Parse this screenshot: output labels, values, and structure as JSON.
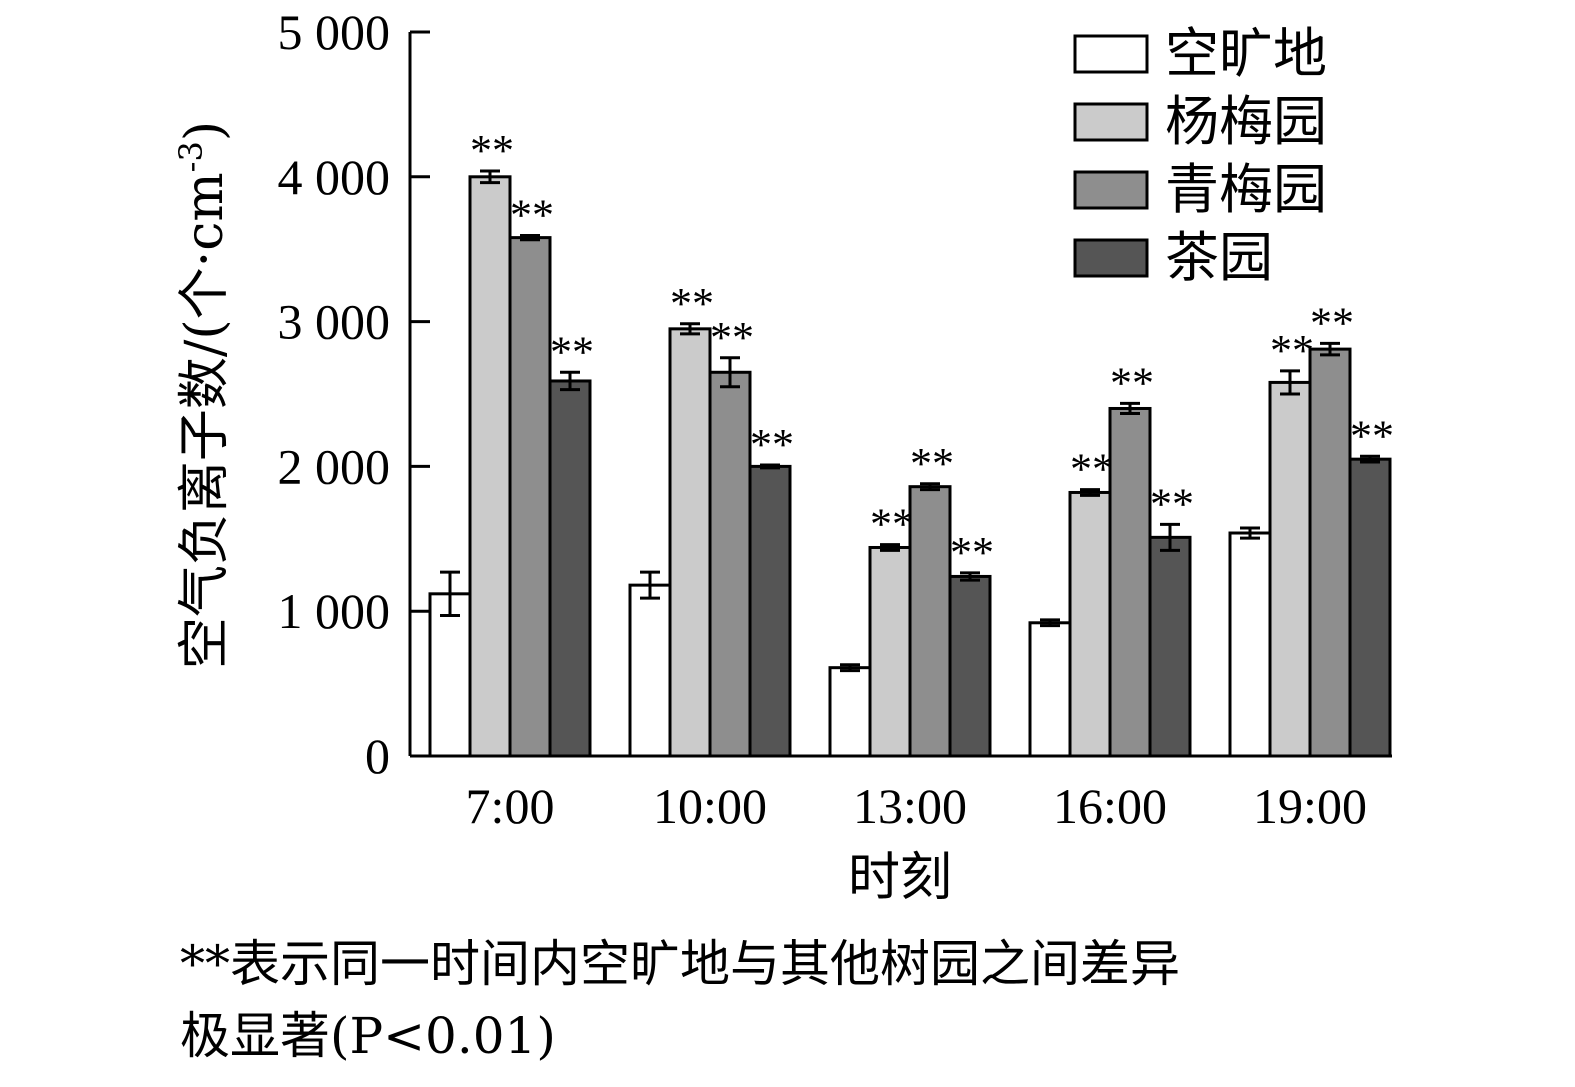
{
  "chart_data": {
    "type": "bar",
    "ylabel_main": "空气负离子数/(个·cm",
    "ylabel_sup": "-3",
    "ylabel_end": ")",
    "xlabel": "时刻",
    "ylim": [
      0,
      5000
    ],
    "yticks": [
      "0",
      "1 000",
      "2 000",
      "3 000",
      "4 000",
      "5 000"
    ],
    "ytick_values": [
      0,
      1000,
      2000,
      3000,
      4000,
      5000
    ],
    "categories": [
      "7:00",
      "10:00",
      "13:00",
      "16:00",
      "19:00"
    ],
    "series": [
      {
        "name": "空旷地",
        "color": "#ffffff",
        "values": [
          1120,
          1180,
          610,
          920,
          1540
        ],
        "errors": [
          150,
          90,
          20,
          20,
          35
        ],
        "sig": [
          false,
          false,
          false,
          false,
          false
        ]
      },
      {
        "name": "杨梅园",
        "color": "#cbcbcb",
        "values": [
          4000,
          2950,
          1440,
          1820,
          2580
        ],
        "errors": [
          40,
          35,
          20,
          20,
          80
        ],
        "sig": [
          true,
          true,
          true,
          true,
          true
        ]
      },
      {
        "name": "青梅园",
        "color": "#8e8e8e",
        "values": [
          3580,
          2650,
          1860,
          2400,
          2810
        ],
        "errors": [
          15,
          100,
          20,
          35,
          40
        ],
        "sig": [
          true,
          true,
          true,
          true,
          true
        ]
      },
      {
        "name": "茶园",
        "color": "#555555",
        "values": [
          2590,
          2000,
          1240,
          1510,
          2050
        ],
        "errors": [
          60,
          10,
          25,
          90,
          20
        ],
        "sig": [
          true,
          true,
          true,
          true,
          true
        ]
      }
    ],
    "sig_marker": "**",
    "legend_position": "top-right",
    "grid": false
  },
  "note": {
    "line1": "**表示同一时间内空旷地与其他树园之间差异",
    "line2": "极显著(P<0.01)"
  }
}
